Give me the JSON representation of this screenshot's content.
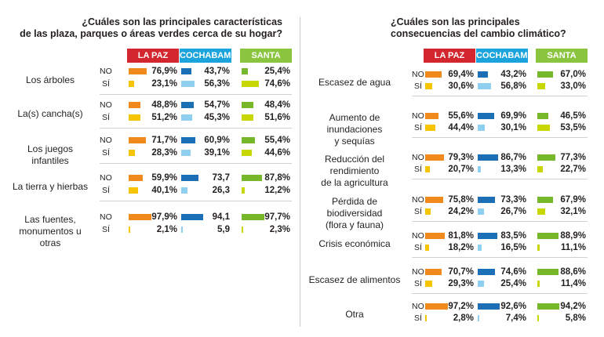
{
  "colors": {
    "lapaz_no": "#f08a1c",
    "lapaz_si": "#f7c400",
    "cocha_no": "#1a6fb5",
    "cocha_si": "#8fcff0",
    "scruz_no": "#76b82a",
    "scruz_si": "#c8d700",
    "hdr_lapaz": "#d4262e",
    "hdr_cocha": "#1aa3dc",
    "hdr_scruz": "#8bc53f"
  },
  "cities": [
    "LA PAZ",
    "COCHABAMBA",
    "SANTA CRUZ"
  ],
  "chart_data": [
    {
      "type": "bar",
      "title": "¿Cuáles son las principales características\nde las plaza,  parques o áreas verdes cerca de su hogar?",
      "categories": [
        "Los árboles",
        "La(s) cancha(s)",
        "Los juegos infantiles",
        "La tierra y hierbas",
        "Las fuentes,\nmonumentos u otras"
      ],
      "row_labels": [
        "NO",
        "SÍ"
      ],
      "series": [
        {
          "name": "LA PAZ",
          "no": [
            "76,9%",
            "48,8%",
            "71,7%",
            "59,9%",
            "97,9%"
          ],
          "si": [
            "23,1%",
            "51,2%",
            "28,3%",
            "40,1%",
            "2,1%"
          ],
          "no_values": [
            76.9,
            48.8,
            71.7,
            59.9,
            97.9
          ],
          "si_values": [
            23.1,
            51.2,
            28.3,
            40.1,
            2.1
          ]
        },
        {
          "name": "COCHABAMBA",
          "no": [
            "43,7%",
            "54,7%",
            "60,9%",
            "73,7",
            "94,1"
          ],
          "si": [
            "56,3%",
            "45,3%",
            "39,1%",
            "26,3",
            "5,9"
          ],
          "no_values": [
            43.7,
            54.7,
            60.9,
            73.7,
            94.1
          ],
          "si_values": [
            56.3,
            45.3,
            39.1,
            26.3,
            5.9
          ]
        },
        {
          "name": "SANTA CRUZ",
          "no": [
            "25,4%",
            "48,4%",
            "55,4%",
            "87,8%",
            "97,7%"
          ],
          "si": [
            "74,6%",
            "51,6%",
            "44,6%",
            "12,2%",
            "2,3%"
          ],
          "no_values": [
            25.4,
            48.4,
            55.4,
            87.8,
            97.7
          ],
          "si_values": [
            74.6,
            51.6,
            44.6,
            12.2,
            2.3
          ]
        }
      ]
    },
    {
      "type": "bar",
      "title": "¿Cuáles son las principales\nconsecuencias del cambio climático?",
      "categories": [
        "Escasez de agua",
        "Aumento de inundaciones\ny sequías",
        "Reducción del rendimiento\nde la agricultura",
        "Pérdida de biodiversidad\n(flora y fauna)",
        "Crisis económica",
        "Escasez de alimentos",
        "Otra"
      ],
      "row_labels": [
        "NO",
        "SÍ"
      ],
      "series": [
        {
          "name": "LA PAZ",
          "no": [
            "69,4%",
            "55,6%",
            "79,3%",
            "75,8%",
            "81,8%",
            "70,7%",
            "97,2%"
          ],
          "si": [
            "30,6%",
            "44,4%",
            "20,7%",
            "24,2%",
            "18,2%",
            "29,3%",
            "2,8%"
          ],
          "no_values": [
            69.4,
            55.6,
            79.3,
            75.8,
            81.8,
            70.7,
            97.2
          ],
          "si_values": [
            30.6,
            44.4,
            20.7,
            24.2,
            18.2,
            29.3,
            2.8
          ]
        },
        {
          "name": "COCHABAMBA",
          "no": [
            "43,2%",
            "69,9%",
            "86,7%",
            "73,3%",
            "83,5%",
            "74,6%",
            "92,6%"
          ],
          "si": [
            "56,8%",
            "30,1%",
            "13,3%",
            "26,7%",
            "16,5%",
            "25,4%",
            "7,4%"
          ],
          "no_values": [
            43.2,
            69.9,
            86.7,
            73.3,
            83.5,
            74.6,
            92.6
          ],
          "si_values": [
            56.8,
            30.1,
            13.3,
            26.7,
            16.5,
            25.4,
            7.4
          ]
        },
        {
          "name": "SANTA CRUZ",
          "no": [
            "67,0%",
            "46,5%",
            "77,3%",
            "67,9%",
            "88,9%",
            "88,6%",
            "94,2%"
          ],
          "si": [
            "33,0%",
            "53,5%",
            "22,7%",
            "32,1%",
            "11,1%",
            "11,4%",
            "5,8%"
          ],
          "no_values": [
            67.0,
            46.5,
            77.3,
            67.9,
            88.9,
            88.6,
            94.2
          ],
          "si_values": [
            33.0,
            53.5,
            22.7,
            32.1,
            11.1,
            11.4,
            5.8
          ]
        }
      ]
    }
  ]
}
